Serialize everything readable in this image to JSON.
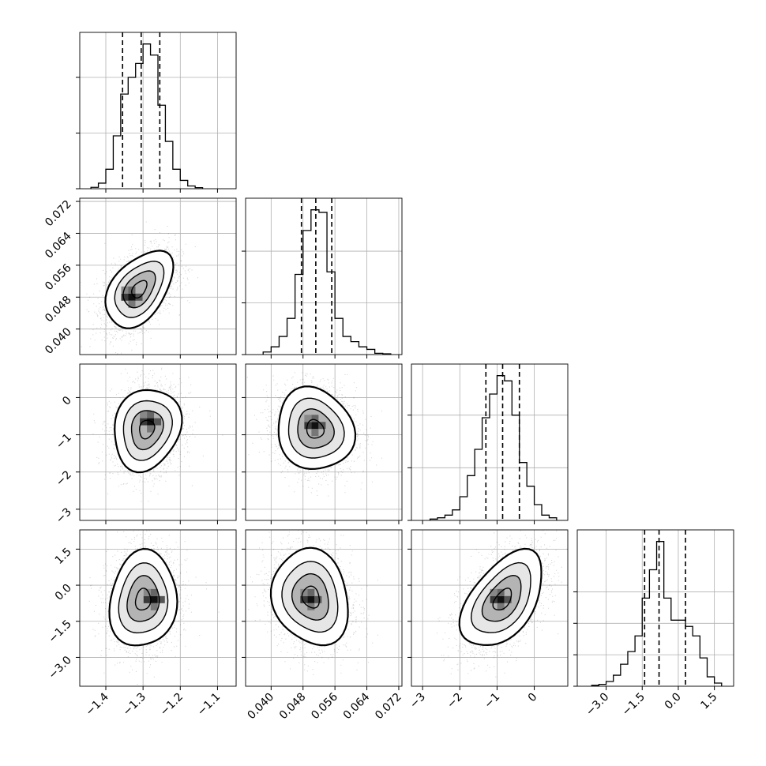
{
  "chart_data": {
    "type": "corner",
    "parameters": [
      {
        "index": 0,
        "range": [
          -1.47,
          -1.05
        ],
        "ticks": [
          -1.4,
          -1.3,
          -1.2,
          -1.1
        ],
        "tick_labels": [
          "−1.4",
          "−1.3",
          "−1.2",
          "−1.1"
        ],
        "quantiles": [
          -1.355,
          -1.305,
          -1.255
        ],
        "histogram": {
          "edges": [
            -1.44,
            -1.42,
            -1.4,
            -1.38,
            -1.36,
            -1.34,
            -1.32,
            -1.3,
            -1.28,
            -1.26,
            -1.24,
            -1.22,
            -1.2,
            -1.18,
            -1.16,
            -1.14
          ],
          "counts": [
            0.005,
            0.02,
            0.07,
            0.19,
            0.34,
            0.4,
            0.45,
            0.52,
            0.48,
            0.3,
            0.17,
            0.07,
            0.03,
            0.01,
            0.004
          ],
          "y_ticks": [
            0.0,
            0.2,
            0.4
          ]
        }
      },
      {
        "index": 1,
        "range": [
          0.0336,
          0.0728
        ],
        "ticks": [
          0.04,
          0.048,
          0.056,
          0.064,
          0.072
        ],
        "tick_labels": [
          "0.040",
          "0.048",
          "0.056",
          "0.064",
          "0.072"
        ],
        "quantiles": [
          0.0476,
          0.0512,
          0.0552
        ],
        "histogram": {
          "edges": [
            0.038,
            0.04,
            0.042,
            0.044,
            0.046,
            0.048,
            0.05,
            0.052,
            0.054,
            0.056,
            0.058,
            0.06,
            0.062,
            0.064,
            0.066,
            0.068,
            0.07
          ],
          "counts": [
            0.01,
            0.03,
            0.07,
            0.14,
            0.31,
            0.48,
            0.56,
            0.55,
            0.32,
            0.14,
            0.07,
            0.05,
            0.03,
            0.02,
            0.005,
            0.003
          ],
          "y_ticks": [
            0.0,
            0.2,
            0.4
          ]
        }
      },
      {
        "index": 2,
        "range": [
          -3.3,
          0.9
        ],
        "ticks": [
          -3,
          -2,
          -1,
          0
        ],
        "tick_labels": [
          "−3",
          "−2",
          "−1",
          "0"
        ],
        "quantiles": [
          -1.3,
          -0.85,
          -0.4
        ],
        "histogram": {
          "edges": [
            -2.8,
            -2.6,
            -2.4,
            -2.2,
            -2.0,
            -1.8,
            -1.6,
            -1.4,
            -1.2,
            -1.0,
            -0.8,
            -0.6,
            -0.4,
            -0.2,
            0.0,
            0.2,
            0.4,
            0.6
          ],
          "counts": [
            0.005,
            0.01,
            0.02,
            0.04,
            0.09,
            0.17,
            0.27,
            0.39,
            0.48,
            0.55,
            0.53,
            0.4,
            0.22,
            0.13,
            0.06,
            0.02,
            0.01
          ],
          "y_ticks": [
            0.0,
            0.2,
            0.4
          ]
        }
      },
      {
        "index": 3,
        "range": [
          -4.2,
          2.3
        ],
        "ticks": [
          -3.0,
          -1.5,
          0.0,
          1.5
        ],
        "tick_labels": [
          "−3.0",
          "−1.5",
          "0.0",
          "1.5"
        ],
        "quantiles": [
          -1.4,
          -0.8,
          0.3
        ],
        "histogram": {
          "edges": [
            -3.6,
            -3.3,
            -3.0,
            -2.7,
            -2.4,
            -2.1,
            -1.8,
            -1.5,
            -1.2,
            -0.9,
            -0.6,
            -0.3,
            0.0,
            0.3,
            0.6,
            0.9,
            1.2,
            1.5,
            1.8
          ],
          "counts": [
            0.003,
            0.006,
            0.015,
            0.035,
            0.07,
            0.11,
            0.16,
            0.28,
            0.37,
            0.46,
            0.28,
            0.21,
            0.21,
            0.19,
            0.16,
            0.09,
            0.03,
            0.01
          ],
          "y_ticks": [
            0.0,
            0.1,
            0.2,
            0.3
          ]
        }
      }
    ],
    "grid": true,
    "scatter_pairs": [
      {
        "row": 1,
        "col": 0,
        "mean": [
          -1.31,
          0.05
        ],
        "sd": [
          0.045,
          0.0048
        ],
        "rho": 0.45,
        "mode": [
          -1.33,
          0.048
        ]
      },
      {
        "row": 2,
        "col": 0,
        "mean": [
          -1.29,
          -0.85
        ],
        "sd": [
          0.045,
          0.55
        ],
        "rho": 0.15,
        "mode": [
          -1.28,
          -0.65
        ]
      },
      {
        "row": 2,
        "col": 1,
        "mean": [
          0.051,
          -0.85
        ],
        "sd": [
          0.0048,
          0.55
        ],
        "rho": -0.1,
        "mode": [
          0.051,
          -0.75
        ]
      },
      {
        "row": 3,
        "col": 0,
        "mean": [
          -1.3,
          -0.6
        ],
        "sd": [
          0.045,
          1.0
        ],
        "rho": 0.1,
        "mode": [
          -1.27,
          -0.6
        ]
      },
      {
        "row": 3,
        "col": 1,
        "mean": [
          0.05,
          -0.5
        ],
        "sd": [
          0.0048,
          1.0
        ],
        "rho": -0.15,
        "mode": [
          0.05,
          -0.6
        ]
      },
      {
        "row": 3,
        "col": 2,
        "mean": [
          -0.85,
          -0.6
        ],
        "sd": [
          0.55,
          1.0
        ],
        "rho": 0.5,
        "mode": [
          -0.9,
          -0.6
        ]
      }
    ]
  }
}
